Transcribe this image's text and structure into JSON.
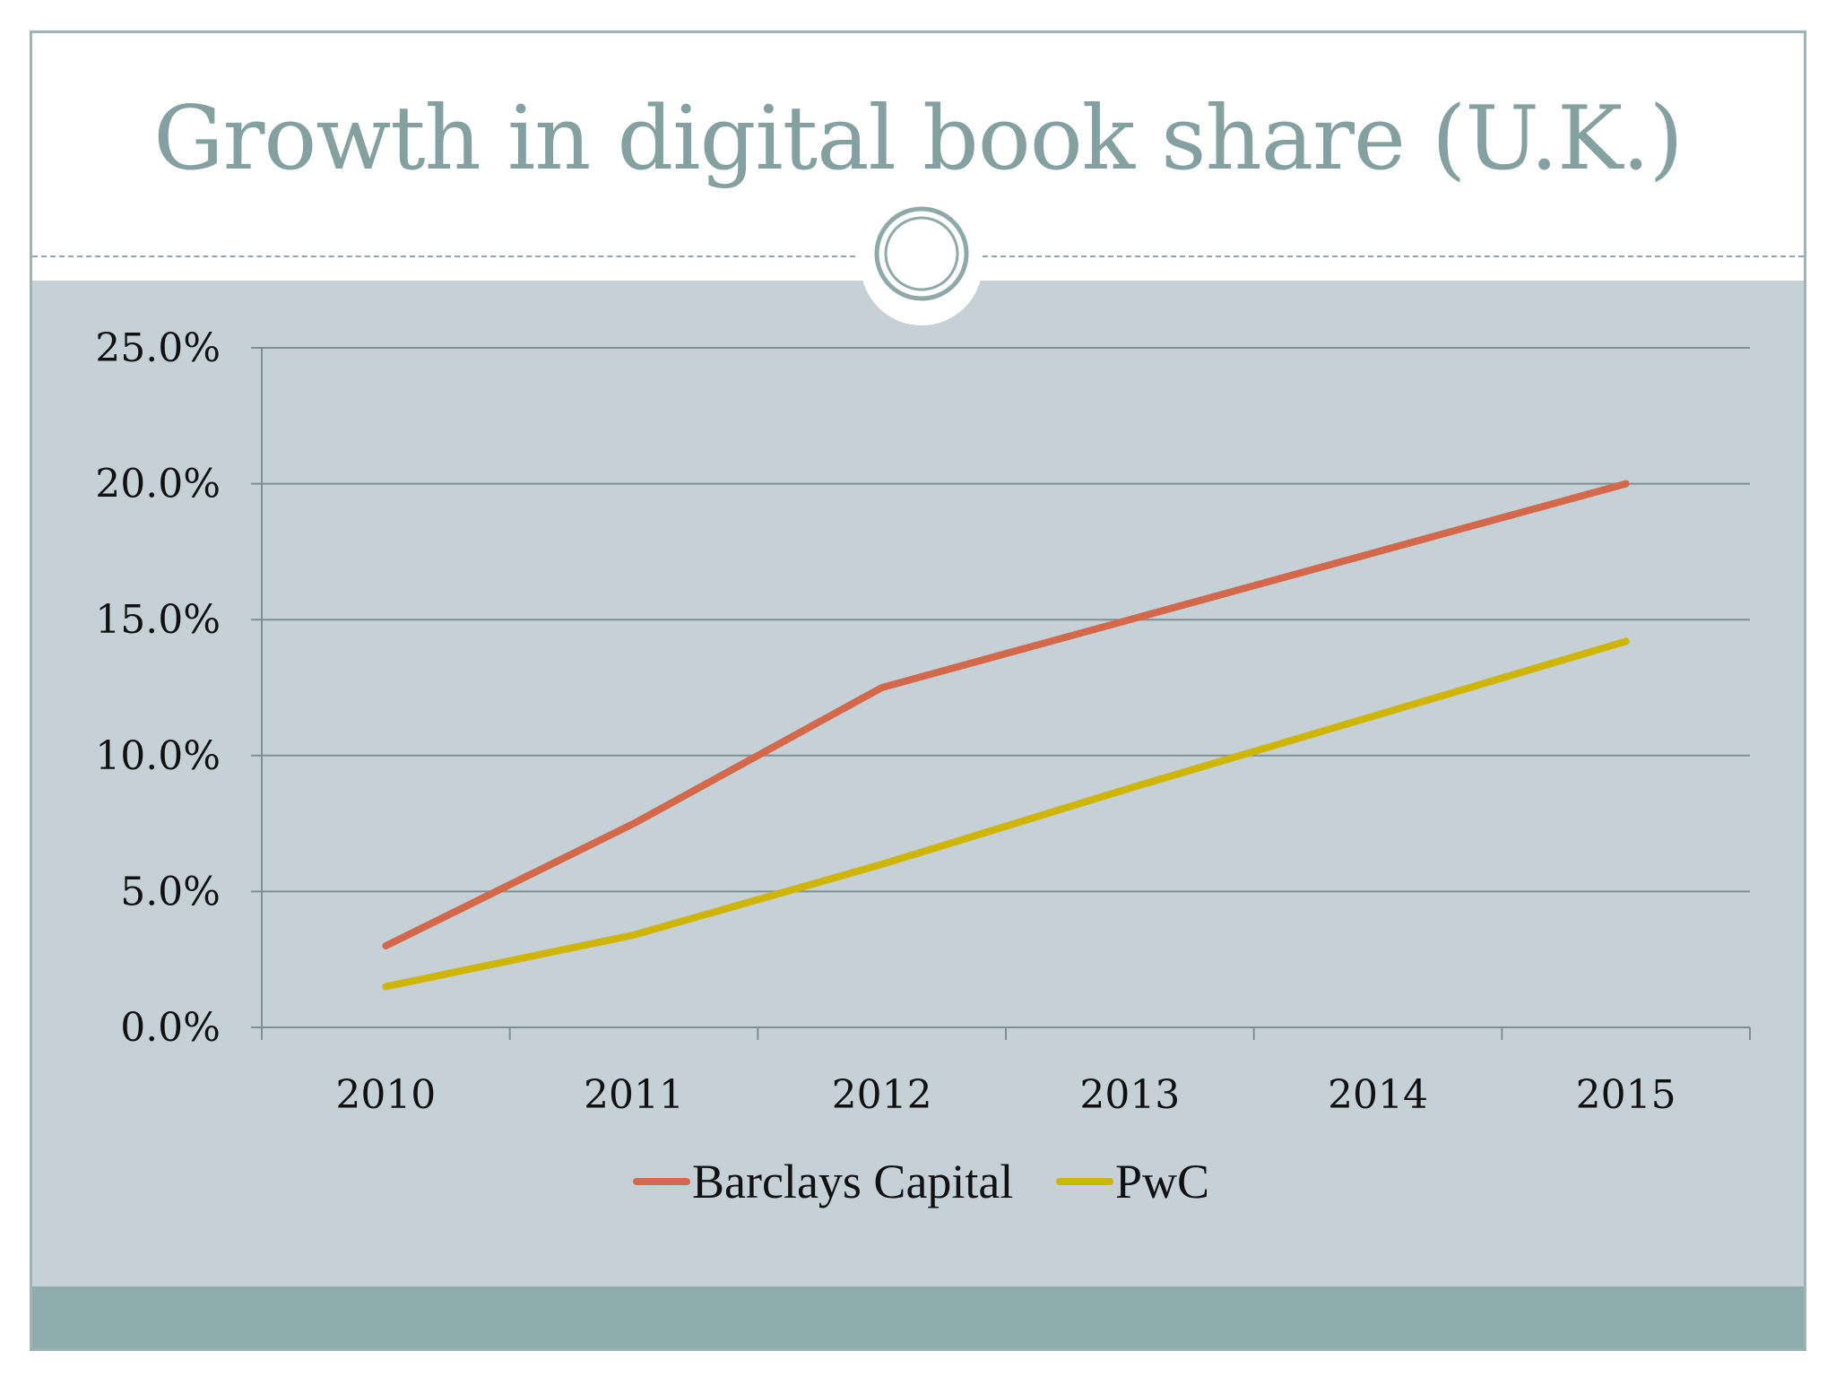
{
  "slide": {
    "title": "Growth in digital book share (U.K.)"
  },
  "colors": {
    "title": "#84a0a0",
    "content_bg": "#c5d1d6",
    "footer": "#8eacad",
    "grid": "#7e8f93",
    "series_barclays": "#d4684a",
    "series_pwc": "#cfb400"
  },
  "chart_data": {
    "type": "line",
    "title": "",
    "xlabel": "",
    "ylabel": "",
    "categories": [
      "2010",
      "2011",
      "2012",
      "2013",
      "2014",
      "2015"
    ],
    "ylim": [
      0,
      25
    ],
    "y_ticks": [
      "0.0%",
      "5.0%",
      "10.0%",
      "15.0%",
      "20.0%",
      "25.0%"
    ],
    "grid": true,
    "legend_position": "bottom",
    "series": [
      {
        "name": "Barclays Capital",
        "values": [
          3.0,
          7.5,
          12.5,
          15.0,
          17.5,
          20.0
        ]
      },
      {
        "name": "PwC",
        "values": [
          1.5,
          3.4,
          6.0,
          8.8,
          11.5,
          14.2
        ]
      }
    ]
  }
}
